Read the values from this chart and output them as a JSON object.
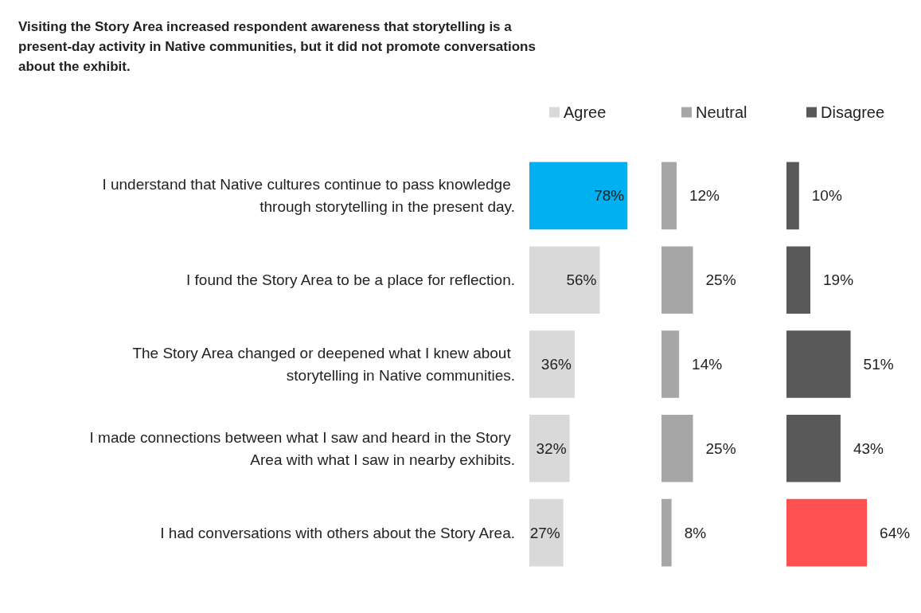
{
  "chart_data": [
    {
      "type": "bar",
      "orientation": "horizontal",
      "title": "Visiting the Story Area increased respondent awareness that storytelling is a present-day activity in Native communities, but it did not promote conversations about the exhibit.",
      "categories": [
        "I understand that Native cultures continue to pass knowledge through storytelling in the present day.",
        "I found the Story Area to be a place for reflection.",
        "The Story Area changed or deepened what I knew about storytelling in Native communities.",
        "I made connections between what I saw and heard in the Story Area with what I saw in nearby exhibits.",
        "I had conversations with others about the Story Area."
      ],
      "series": [
        {
          "name": "Agree",
          "color": "#d9d9d9",
          "colors": [
            "#00b0f0",
            "#d9d9d9",
            "#d9d9d9",
            "#d9d9d9",
            "#d9d9d9"
          ],
          "values": [
            78,
            56,
            36,
            32,
            27
          ],
          "value_labels": [
            "78%",
            "56%",
            "36%",
            "32%",
            "27%"
          ]
        }
      ],
      "legend": "top",
      "tick_labels": "y"
    },
    {
      "type": "bar",
      "orientation": "horizontal",
      "categories": [
        null,
        null,
        null,
        null,
        null
      ],
      "series": [
        {
          "name": "Neutral",
          "color": "#a6a6a6",
          "values": [
            12,
            25,
            14,
            25,
            8
          ],
          "value_labels": [
            "12%",
            "25%",
            "14%",
            "25%",
            "8%"
          ]
        }
      ],
      "legend": "top",
      "tick_labels": false
    },
    {
      "type": "bar",
      "orientation": "horizontal",
      "categories": [
        null,
        null,
        null,
        null,
        null
      ],
      "series": [
        {
          "name": "Disagree",
          "color": "#595959",
          "colors": [
            "#595959",
            "#595959",
            "#595959",
            "#595959",
            "#ff5050"
          ],
          "values": [
            10,
            19,
            51,
            43,
            64
          ],
          "value_labels": [
            "10%",
            "19%",
            "51%",
            "43%",
            "64%"
          ]
        }
      ],
      "legend": "top",
      "tick_labels": false
    }
  ]
}
